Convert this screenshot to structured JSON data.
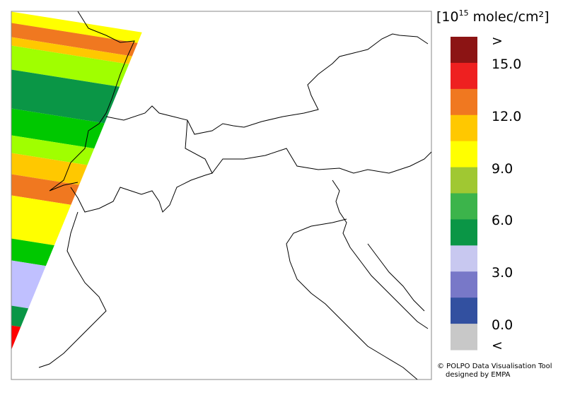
{
  "legend": {
    "title_start": "[10",
    "title_sup": "15",
    "title_end": " molec/cm²]",
    "labels": [
      ">",
      "15.0",
      "12.0",
      "9.0",
      "6.0",
      "3.0",
      "0.0",
      "<"
    ],
    "colors": [
      "#8c1414",
      "#ee2020",
      "#f07820",
      "#ffc800",
      "#ffff00",
      "#a0c832",
      "#3cb44b",
      "#0a9646",
      "#c8c8f0",
      "#7878c8",
      "#3250a0",
      "#c8c8c8"
    ]
  },
  "credits": [
    "© POLPO Data Visualisation Tool",
    "designed by EMPA"
  ]
}
